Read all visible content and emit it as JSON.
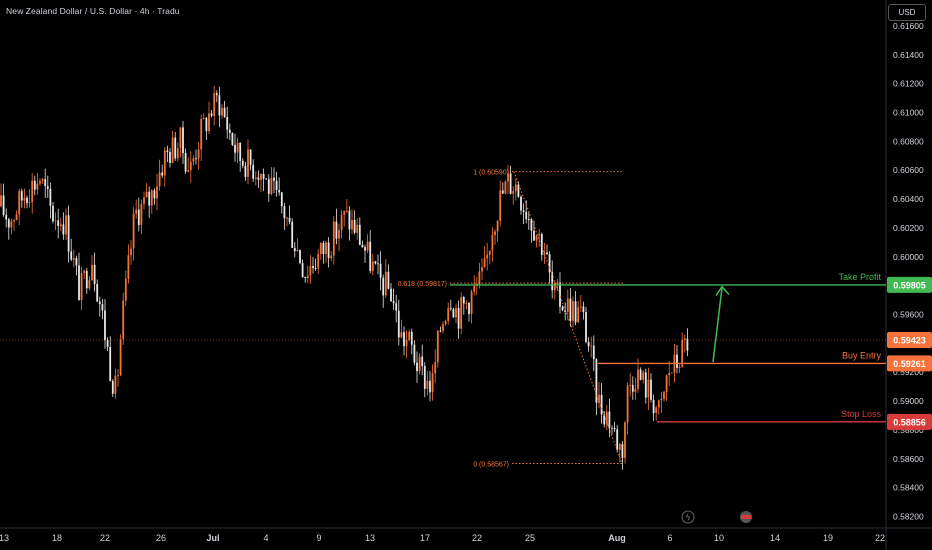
{
  "header": {
    "title": "New Zealand Dollar / U.S. Dollar · 4h · Tradu",
    "currency_button": "USD"
  },
  "colors": {
    "background": "#000000",
    "candle_up": "#f5733a",
    "candle_down": "#e8e8e8",
    "axis_text": "#d1d4dc",
    "fib": "#f5733a",
    "take_profit": "#3fb950",
    "buy_entry": "#f5733a",
    "stop_loss": "#d93a3a",
    "current_price": "#f5733a"
  },
  "chart_data": {
    "type": "candlestick",
    "symbol": "NZD/USD",
    "timeframe": "4h",
    "ylim": [
      0.5812,
      0.6178
    ],
    "y_ticks": [
      0.582,
      0.584,
      0.586,
      0.588,
      0.59,
      0.592,
      0.594,
      0.596,
      0.598,
      0.6,
      0.602,
      0.604,
      0.606,
      0.608,
      0.61,
      0.612,
      0.614,
      0.616
    ],
    "y_tick_labels": [
      "0.58200",
      "0.58400",
      "0.58600",
      "0.58800",
      "0.59000",
      "0.59200",
      "0.59400",
      "0.59600",
      "0.59800",
      "0.60000",
      "0.60200",
      "0.60400",
      "0.60600",
      "0.60800",
      "0.61000",
      "0.61200",
      "0.61400",
      "0.61600"
    ],
    "x_tick_labels": [
      "13",
      "18",
      "22",
      "26",
      "Jul",
      "4",
      "9",
      "13",
      "17",
      "22",
      "25",
      "Aug",
      "6",
      "10",
      "14",
      "19",
      "22"
    ],
    "price_path": [
      [
        0,
        0.6035
      ],
      [
        10,
        0.6025
      ],
      [
        25,
        0.6045
      ],
      [
        40,
        0.6055
      ],
      [
        52,
        0.603
      ],
      [
        65,
        0.6025
      ],
      [
        80,
        0.5975
      ],
      [
        92,
        0.6
      ],
      [
        102,
        0.596
      ],
      [
        110,
        0.5925
      ],
      [
        116,
        0.5905
      ],
      [
        122,
        0.5955
      ],
      [
        135,
        0.603
      ],
      [
        150,
        0.604
      ],
      [
        165,
        0.607
      ],
      [
        180,
        0.608
      ],
      [
        190,
        0.606
      ],
      [
        200,
        0.6085
      ],
      [
        210,
        0.61
      ],
      [
        218,
        0.611
      ],
      [
        228,
        0.609
      ],
      [
        238,
        0.607
      ],
      [
        248,
        0.6065
      ],
      [
        260,
        0.606
      ],
      [
        272,
        0.6045
      ],
      [
        285,
        0.603
      ],
      [
        295,
        0.601
      ],
      [
        305,
        0.599
      ],
      [
        315,
        0.5998
      ],
      [
        330,
        0.601
      ],
      [
        345,
        0.6028
      ],
      [
        355,
        0.602
      ],
      [
        365,
        0.6005
      ],
      [
        378,
        0.5985
      ],
      [
        392,
        0.5975
      ],
      [
        400,
        0.5945
      ],
      [
        410,
        0.594
      ],
      [
        420,
        0.592
      ],
      [
        432,
        0.591
      ],
      [
        440,
        0.595
      ],
      [
        450,
        0.5975
      ],
      [
        458,
        0.596
      ],
      [
        468,
        0.597
      ],
      [
        478,
        0.598
      ],
      [
        485,
        0.599
      ],
      [
        492,
        0.602
      ],
      [
        500,
        0.604
      ],
      [
        508,
        0.6052
      ],
      [
        516,
        0.605
      ],
      [
        525,
        0.6035
      ],
      [
        535,
        0.602
      ],
      [
        545,
        0.6005
      ],
      [
        552,
        0.5975
      ],
      [
        560,
        0.597
      ],
      [
        570,
        0.5965
      ],
      [
        582,
        0.596
      ],
      [
        590,
        0.5935
      ],
      [
        598,
        0.59
      ],
      [
        608,
        0.589
      ],
      [
        616,
        0.5875
      ],
      [
        622,
        0.5865
      ],
      [
        628,
        0.591
      ],
      [
        636,
        0.592
      ],
      [
        646,
        0.591
      ],
      [
        654,
        0.59
      ],
      [
        660,
        0.589
      ],
      [
        668,
        0.592
      ],
      [
        676,
        0.5925
      ],
      [
        684,
        0.5938
      ],
      [
        688,
        0.5942
      ]
    ],
    "fibonacci": [
      {
        "level": "1",
        "price": 0.6059,
        "label": "1 (0.60590)"
      },
      {
        "level": "0.618",
        "price": 0.59817,
        "label": "0.618 (0.59817)"
      },
      {
        "level": "0",
        "price": 0.58567,
        "label": "0 (0.58567)"
      }
    ],
    "levels": [
      {
        "name": "Take Profit",
        "price": 0.59805,
        "label": "0.59805"
      },
      {
        "name": "Buy Entry",
        "price": 0.59261,
        "label": "0.59261"
      },
      {
        "name": "Stop Loss",
        "price": 0.58856,
        "label": "0.58856"
      }
    ],
    "current_price": {
      "price": 0.59423,
      "label": "0.59423"
    }
  }
}
